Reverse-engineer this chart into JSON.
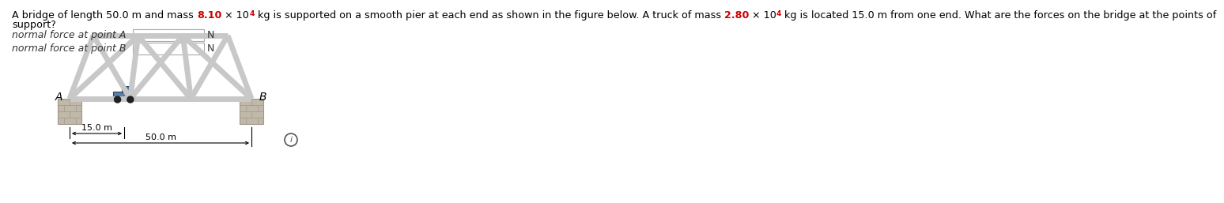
{
  "background_color": "#ffffff",
  "truss_color": "#c8c8c8",
  "truss_lw": 5.0,
  "pier_color": "#c0b8a8",
  "pier_edge_color": "#a09888",
  "road_color": "#d0d0d0",
  "truck_body_color": "#5b7fa6",
  "truck_cab_color": "#4a6e94",
  "truck_edge_color": "#2a4060",
  "wheel_color": "#202020",
  "label_A": "A",
  "label_B": "B",
  "dim_15": "15.0 m",
  "dim_50": "50.0 m",
  "input_label_A": "normal force at point A",
  "input_label_B": "normal force at point B",
  "unit": "N",
  "fig_width": 12.0,
  "fig_height": 2.37,
  "line1_segs": [
    {
      "text": "A bridge of length 50.0 m and mass ",
      "color": "#000000",
      "bold": false,
      "sup": false
    },
    {
      "text": "8.10",
      "color": "#cc0000",
      "bold": true,
      "sup": false
    },
    {
      "text": " × 10",
      "color": "#000000",
      "bold": false,
      "sup": false
    },
    {
      "text": "4",
      "color": "#cc0000",
      "bold": true,
      "sup": true
    },
    {
      "text": " kg is supported on a smooth pier at each end as shown in the figure below. A truck of mass ",
      "color": "#000000",
      "bold": false,
      "sup": false
    },
    {
      "text": "2.80",
      "color": "#cc0000",
      "bold": true,
      "sup": false
    },
    {
      "text": " × 10",
      "color": "#000000",
      "bold": false,
      "sup": false
    },
    {
      "text": "4",
      "color": "#cc0000",
      "bold": true,
      "sup": true
    },
    {
      "text": " kg is located 15.0 m from one end. What are the forces on the bridge at the points of",
      "color": "#000000",
      "bold": false,
      "sup": false
    }
  ],
  "line2_segs": [
    {
      "text": "support?",
      "color": "#000000",
      "bold": false,
      "sup": false
    }
  ]
}
